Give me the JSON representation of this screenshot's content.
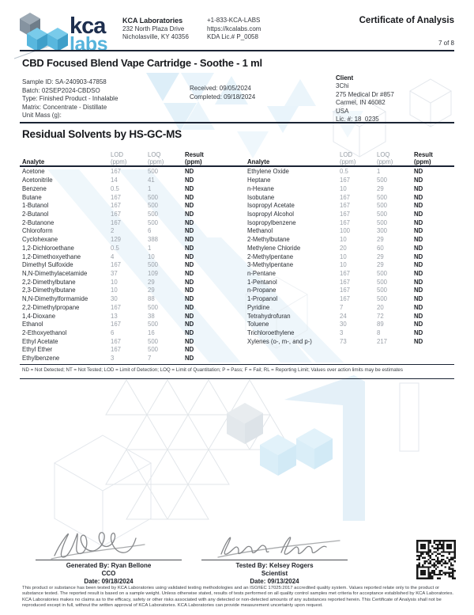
{
  "colors": {
    "brand_navy": "#1d2e4e",
    "brand_blue": "#56b4dc",
    "rule_dark": "#1b2434",
    "muted_gray": "#9aa0a8",
    "watermark_blue": "#d7ebf7"
  },
  "header": {
    "logo": {
      "word_top": "kca",
      "word_bottom": "labs"
    },
    "company": {
      "name": "KCA Laboratories",
      "address1": "232 North Plaza Drive",
      "address2": "Nicholasville, KY 40356"
    },
    "contact": {
      "phone": "+1-833-KCA-LABS",
      "website": "https://kcalabs.com",
      "license": "KDA Lic.# P_0058"
    },
    "doc_type": "Certificate of Analysis",
    "page_number": "7 of 8"
  },
  "sample": {
    "title": "CBD Focused Blend Vape Cartridge - Soothe - 1 ml",
    "details": {
      "sample_id": "Sample ID: SA-240903-47858",
      "batch": "Batch: 02SEP2024-CBDSO",
      "type": "Type: Finished Product - Inhalable",
      "matrix": "Matrix: Concentrate - Distillate",
      "unit_mass": "Unit Mass (g):"
    },
    "dates": {
      "received": "Received: 09/05/2024",
      "completed": "Completed: 09/18/2024"
    },
    "client": {
      "label": "Client",
      "name": "3Chi",
      "address1": "275 Medical Dr #857",
      "address2": "Carmel, IN 46082",
      "country": "USA",
      "license": "Lic. #: 18_0235"
    }
  },
  "section_title": "Residual Solvents by HS-GC-MS",
  "table": {
    "headers": {
      "analyte": "Analyte",
      "lod": "LOD",
      "loq": "LOQ",
      "result": "Result",
      "unit": "(ppm)",
      "unit_bold": "(ppm)"
    },
    "left_rows": [
      [
        "Acetone",
        "167",
        "500",
        "ND"
      ],
      [
        "Acetonitrile",
        "14",
        "41",
        "ND"
      ],
      [
        "Benzene",
        "0.5",
        "1",
        "ND"
      ],
      [
        "Butane",
        "167",
        "500",
        "ND"
      ],
      [
        "1-Butanol",
        "167",
        "500",
        "ND"
      ],
      [
        "2-Butanol",
        "167",
        "500",
        "ND"
      ],
      [
        "2-Butanone",
        "167",
        "500",
        "ND"
      ],
      [
        "Chloroform",
        "2",
        "6",
        "ND"
      ],
      [
        "Cyclohexane",
        "129",
        "388",
        "ND"
      ],
      [
        "1,2-Dichloroethane",
        "0.5",
        "1",
        "ND"
      ],
      [
        "1,2-Dimethoxyethane",
        "4",
        "10",
        "ND"
      ],
      [
        "Dimethyl Sulfoxide",
        "167",
        "500",
        "ND"
      ],
      [
        "N,N-Dimethylacetamide",
        "37",
        "109",
        "ND"
      ],
      [
        "2,2-Dimethylbutane",
        "10",
        "29",
        "ND"
      ],
      [
        "2,3-Dimethylbutane",
        "10",
        "29",
        "ND"
      ],
      [
        "N,N-Dimethylformamide",
        "30",
        "88",
        "ND"
      ],
      [
        "2,2-Dimethylpropane",
        "167",
        "500",
        "ND"
      ],
      [
        "1,4-Dioxane",
        "13",
        "38",
        "ND"
      ],
      [
        "Ethanol",
        "167",
        "500",
        "ND"
      ],
      [
        "2-Ethoxyethanol",
        "6",
        "16",
        "ND"
      ],
      [
        "Ethyl Acetate",
        "167",
        "500",
        "ND"
      ],
      [
        "Ethyl Ether",
        "167",
        "500",
        "ND"
      ],
      [
        "Ethylbenzene",
        "3",
        "7",
        "ND"
      ]
    ],
    "right_rows": [
      [
        "Ethylene Oxide",
        "0.5",
        "1",
        "ND"
      ],
      [
        "Heptane",
        "167",
        "500",
        "ND"
      ],
      [
        "n-Hexane",
        "10",
        "29",
        "ND"
      ],
      [
        "Isobutane",
        "167",
        "500",
        "ND"
      ],
      [
        "Isopropyl Acetate",
        "167",
        "500",
        "ND"
      ],
      [
        "Isopropyl Alcohol",
        "167",
        "500",
        "ND"
      ],
      [
        "Isopropylbenzene",
        "167",
        "500",
        "ND"
      ],
      [
        "Methanol",
        "100",
        "300",
        "ND"
      ],
      [
        "2-Methylbutane",
        "10",
        "29",
        "ND"
      ],
      [
        "Methylene Chloride",
        "20",
        "60",
        "ND"
      ],
      [
        "2-Methylpentane",
        "10",
        "29",
        "ND"
      ],
      [
        "3-Methylpentane",
        "10",
        "29",
        "ND"
      ],
      [
        "n-Pentane",
        "167",
        "500",
        "ND"
      ],
      [
        "1-Pentanol",
        "167",
        "500",
        "ND"
      ],
      [
        "n-Propane",
        "167",
        "500",
        "ND"
      ],
      [
        "1-Propanol",
        "167",
        "500",
        "ND"
      ],
      [
        "Pyridine",
        "7",
        "20",
        "ND"
      ],
      [
        "Tetrahydrofuran",
        "24",
        "72",
        "ND"
      ],
      [
        "Toluene",
        "30",
        "89",
        "ND"
      ],
      [
        "Trichloroethylene",
        "3",
        "8",
        "ND"
      ],
      [
        "Xylenes (o-, m-, and p-)",
        "73",
        "217",
        "ND"
      ]
    ]
  },
  "footnote": "ND = Not Detected; NT = Not Tested; LOD = Limit of Detection; LOQ = Limit of Quantitation; P = Pass; F = Fail; RL = Reporting Limit; Values over action limits may be estimates",
  "signatures": {
    "generated": {
      "by": "Generated By: Ryan Bellone",
      "role": "CCO",
      "date": "Date: 09/18/2024"
    },
    "tested": {
      "by": "Tested By: Kelsey Rogers",
      "role": "Scientist",
      "date": "Date: 09/13/2024"
    }
  },
  "disclaimer": "This product or substance has been tested by KCA Laboratories using validated testing methodologies and an ISO/IEC 17025:2017 accredited quality system. Values reported relate only to the product or substance tested. The reported result is based on a sample weight. Unless otherwise stated, results of tests performed on all quality control samples met criteria for acceptance established by KCA Laboratories. KCA Laboratories makes no claims as to the efficacy, safety or other risks associated with any detected or non-detected amounts of any substances reported herein. This Certificate of Analysis shall not be reproduced except in full, without the written approval of KCA Laboratories. KCA Laboratories can provide measurement uncertainty upon request."
}
